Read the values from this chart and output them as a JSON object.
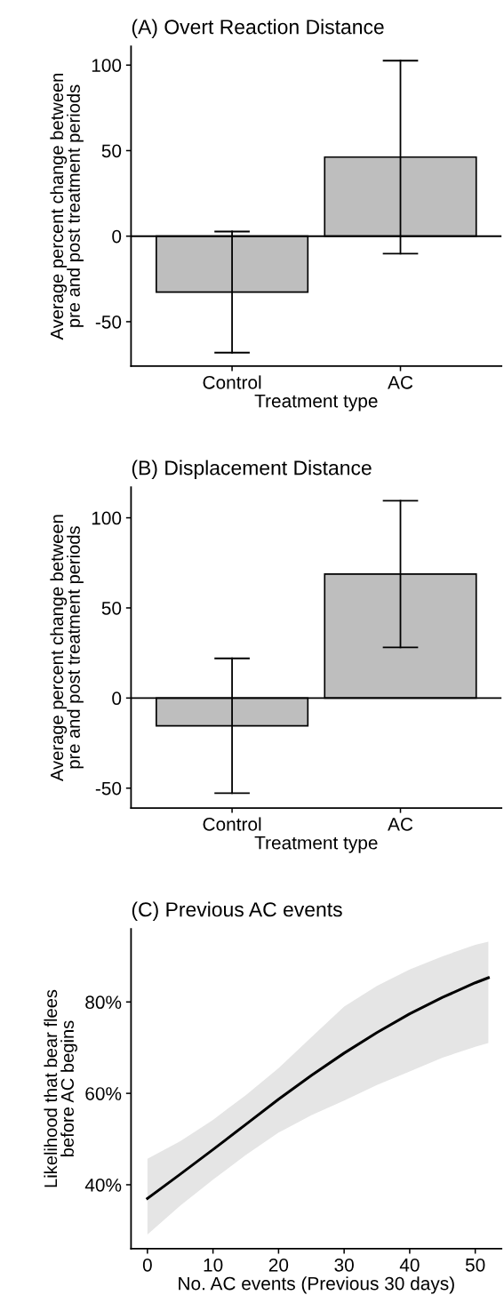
{
  "chart_data": [
    {
      "type": "bar",
      "title": "(A) Overt Reaction Distance",
      "xlabel": "Treatment type",
      "ylabel": "Average percent change between\npre and post treatment periods",
      "categories": [
        "Control",
        "AC"
      ],
      "values": [
        -32.7,
        46.2
      ],
      "errors": [
        35.4,
        56.4
      ],
      "color": "#bebebe",
      "ylim": [
        -76,
        111
      ],
      "yticks": [
        {
          "value": -50,
          "label": "-50"
        },
        0,
        50,
        100
      ],
      "ref_lines": [
        {
          "axis": "y",
          "value": 0,
          "color": "#000000"
        }
      ],
      "grid": false,
      "legend": false
    },
    {
      "type": "bar",
      "title": "(B) Displacement Distance",
      "xlabel": "Treatment type",
      "ylabel": "Average percent change between\npre and post treatment periods",
      "categories": [
        "Control",
        "AC"
      ],
      "values": [
        -15.4,
        68.8
      ],
      "errors": [
        37.4,
        40.7
      ],
      "color": "#bebebe",
      "ylim": [
        -61,
        117
      ],
      "yticks": [
        {
          "value": -50,
          "label": "-50"
        },
        0,
        50,
        100
      ],
      "ref_lines": [
        {
          "axis": "y",
          "value": 0,
          "color": "#000000"
        }
      ],
      "grid": false,
      "legend": false
    },
    {
      "type": "line",
      "title": "(C) Previous AC events",
      "xlabel": "No. AC events (Previous 30 days)",
      "ylabel": "Likelihood that bear flees\nbefore AC begins",
      "x": [
        0,
        5,
        10,
        15,
        20,
        25,
        30,
        35,
        40,
        45,
        50,
        52
      ],
      "series": [
        {
          "color": "#000000",
          "values": [
            37.0,
            42.3,
            47.7,
            53.2,
            58.7,
            63.9,
            68.8,
            73.3,
            77.4,
            81.0,
            84.2,
            85.3
          ],
          "lower": [
            29.1,
            35.4,
            41.1,
            46.5,
            51.4,
            55.2,
            58.4,
            61.8,
            64.8,
            67.8,
            70.2,
            71.0
          ],
          "upper": [
            45.7,
            49.5,
            54.2,
            59.6,
            65.5,
            72.3,
            79.0,
            83.5,
            87.1,
            90.0,
            92.5,
            93.2
          ]
        }
      ],
      "xlim": [
        -2.5,
        54
      ],
      "xticks": [
        0,
        10,
        20,
        30,
        40,
        50
      ],
      "ylim": [
        26,
        96
      ],
      "yticks": [
        {
          "value": 40,
          "label": "40%"
        },
        {
          "value": 60,
          "label": "60%"
        },
        {
          "value": 80,
          "label": "80%"
        }
      ],
      "grid": false,
      "legend": false,
      "marker": "none",
      "line_style": "solid"
    }
  ]
}
